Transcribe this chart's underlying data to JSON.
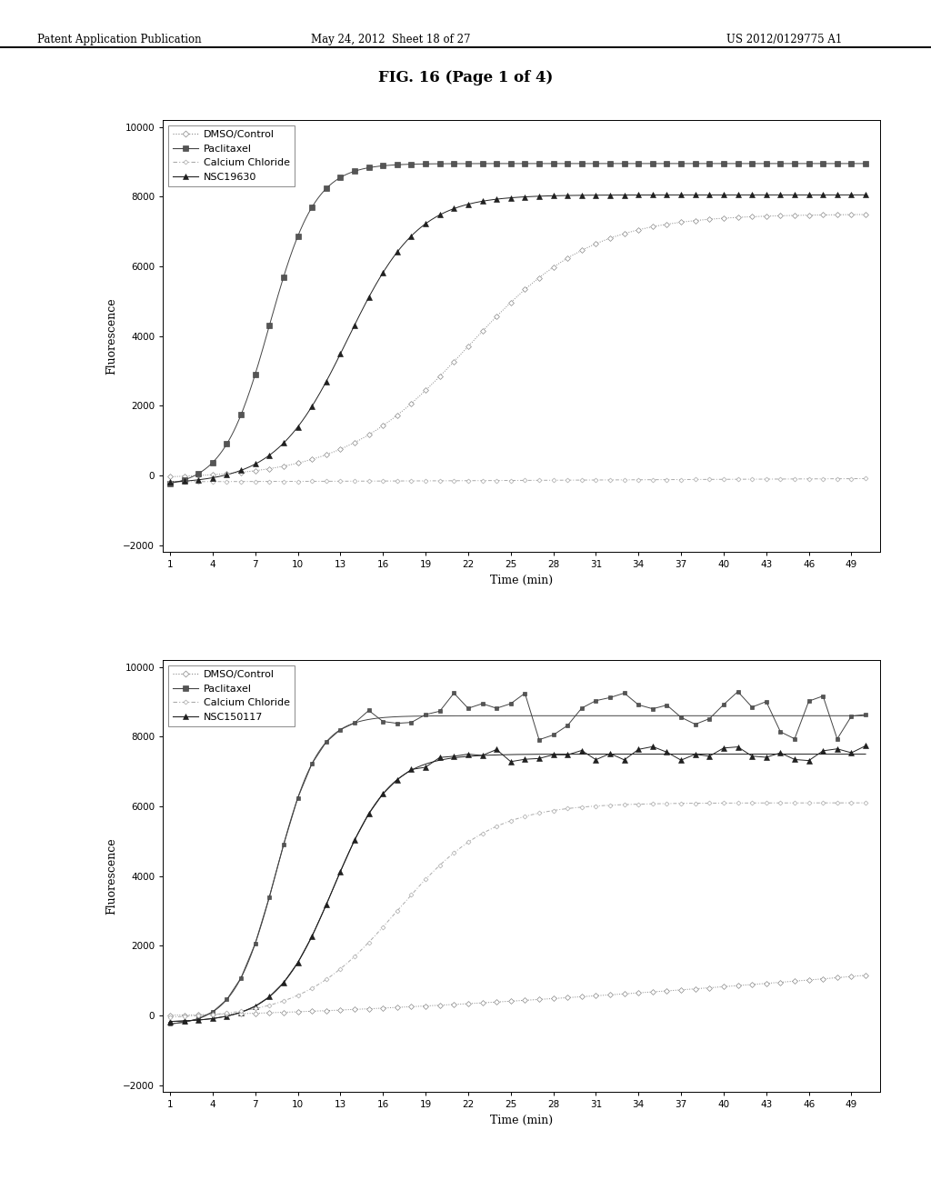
{
  "title": "FIG. 16 (Page 1 of 4)",
  "header_left": "Patent Application Publication",
  "header_mid": "May 24, 2012  Sheet 18 of 27",
  "header_right": "US 2012/0129775 A1",
  "chart1": {
    "legend_entries": [
      "DMSO/Control",
      "Paclitaxel",
      "Calcium Chloride",
      "NSC19630"
    ],
    "ylabel": "Fluorescence",
    "xlabel": "Time (min)",
    "yticks": [
      -2000,
      0,
      2000,
      4000,
      6000,
      8000,
      10000
    ],
    "xticks": [
      1,
      4,
      7,
      10,
      13,
      16,
      19,
      22,
      25,
      28,
      31,
      34,
      37,
      40,
      43,
      46,
      49
    ],
    "ylim": [
      -2200,
      10200
    ],
    "xlim": [
      0.5,
      51
    ]
  },
  "chart2": {
    "legend_entries": [
      "DMSO/Control",
      "Paclitaxel",
      "Calcium Chloride",
      "NSC150117"
    ],
    "ylabel": "Fluorescence",
    "xlabel": "Time (min)",
    "yticks": [
      -2000,
      0,
      2000,
      4000,
      6000,
      8000,
      10000
    ],
    "xticks": [
      1,
      4,
      7,
      10,
      13,
      16,
      19,
      22,
      25,
      28,
      31,
      34,
      37,
      40,
      43,
      46,
      49
    ],
    "ylim": [
      -2200,
      10200
    ],
    "xlim": [
      0.5,
      51
    ]
  }
}
